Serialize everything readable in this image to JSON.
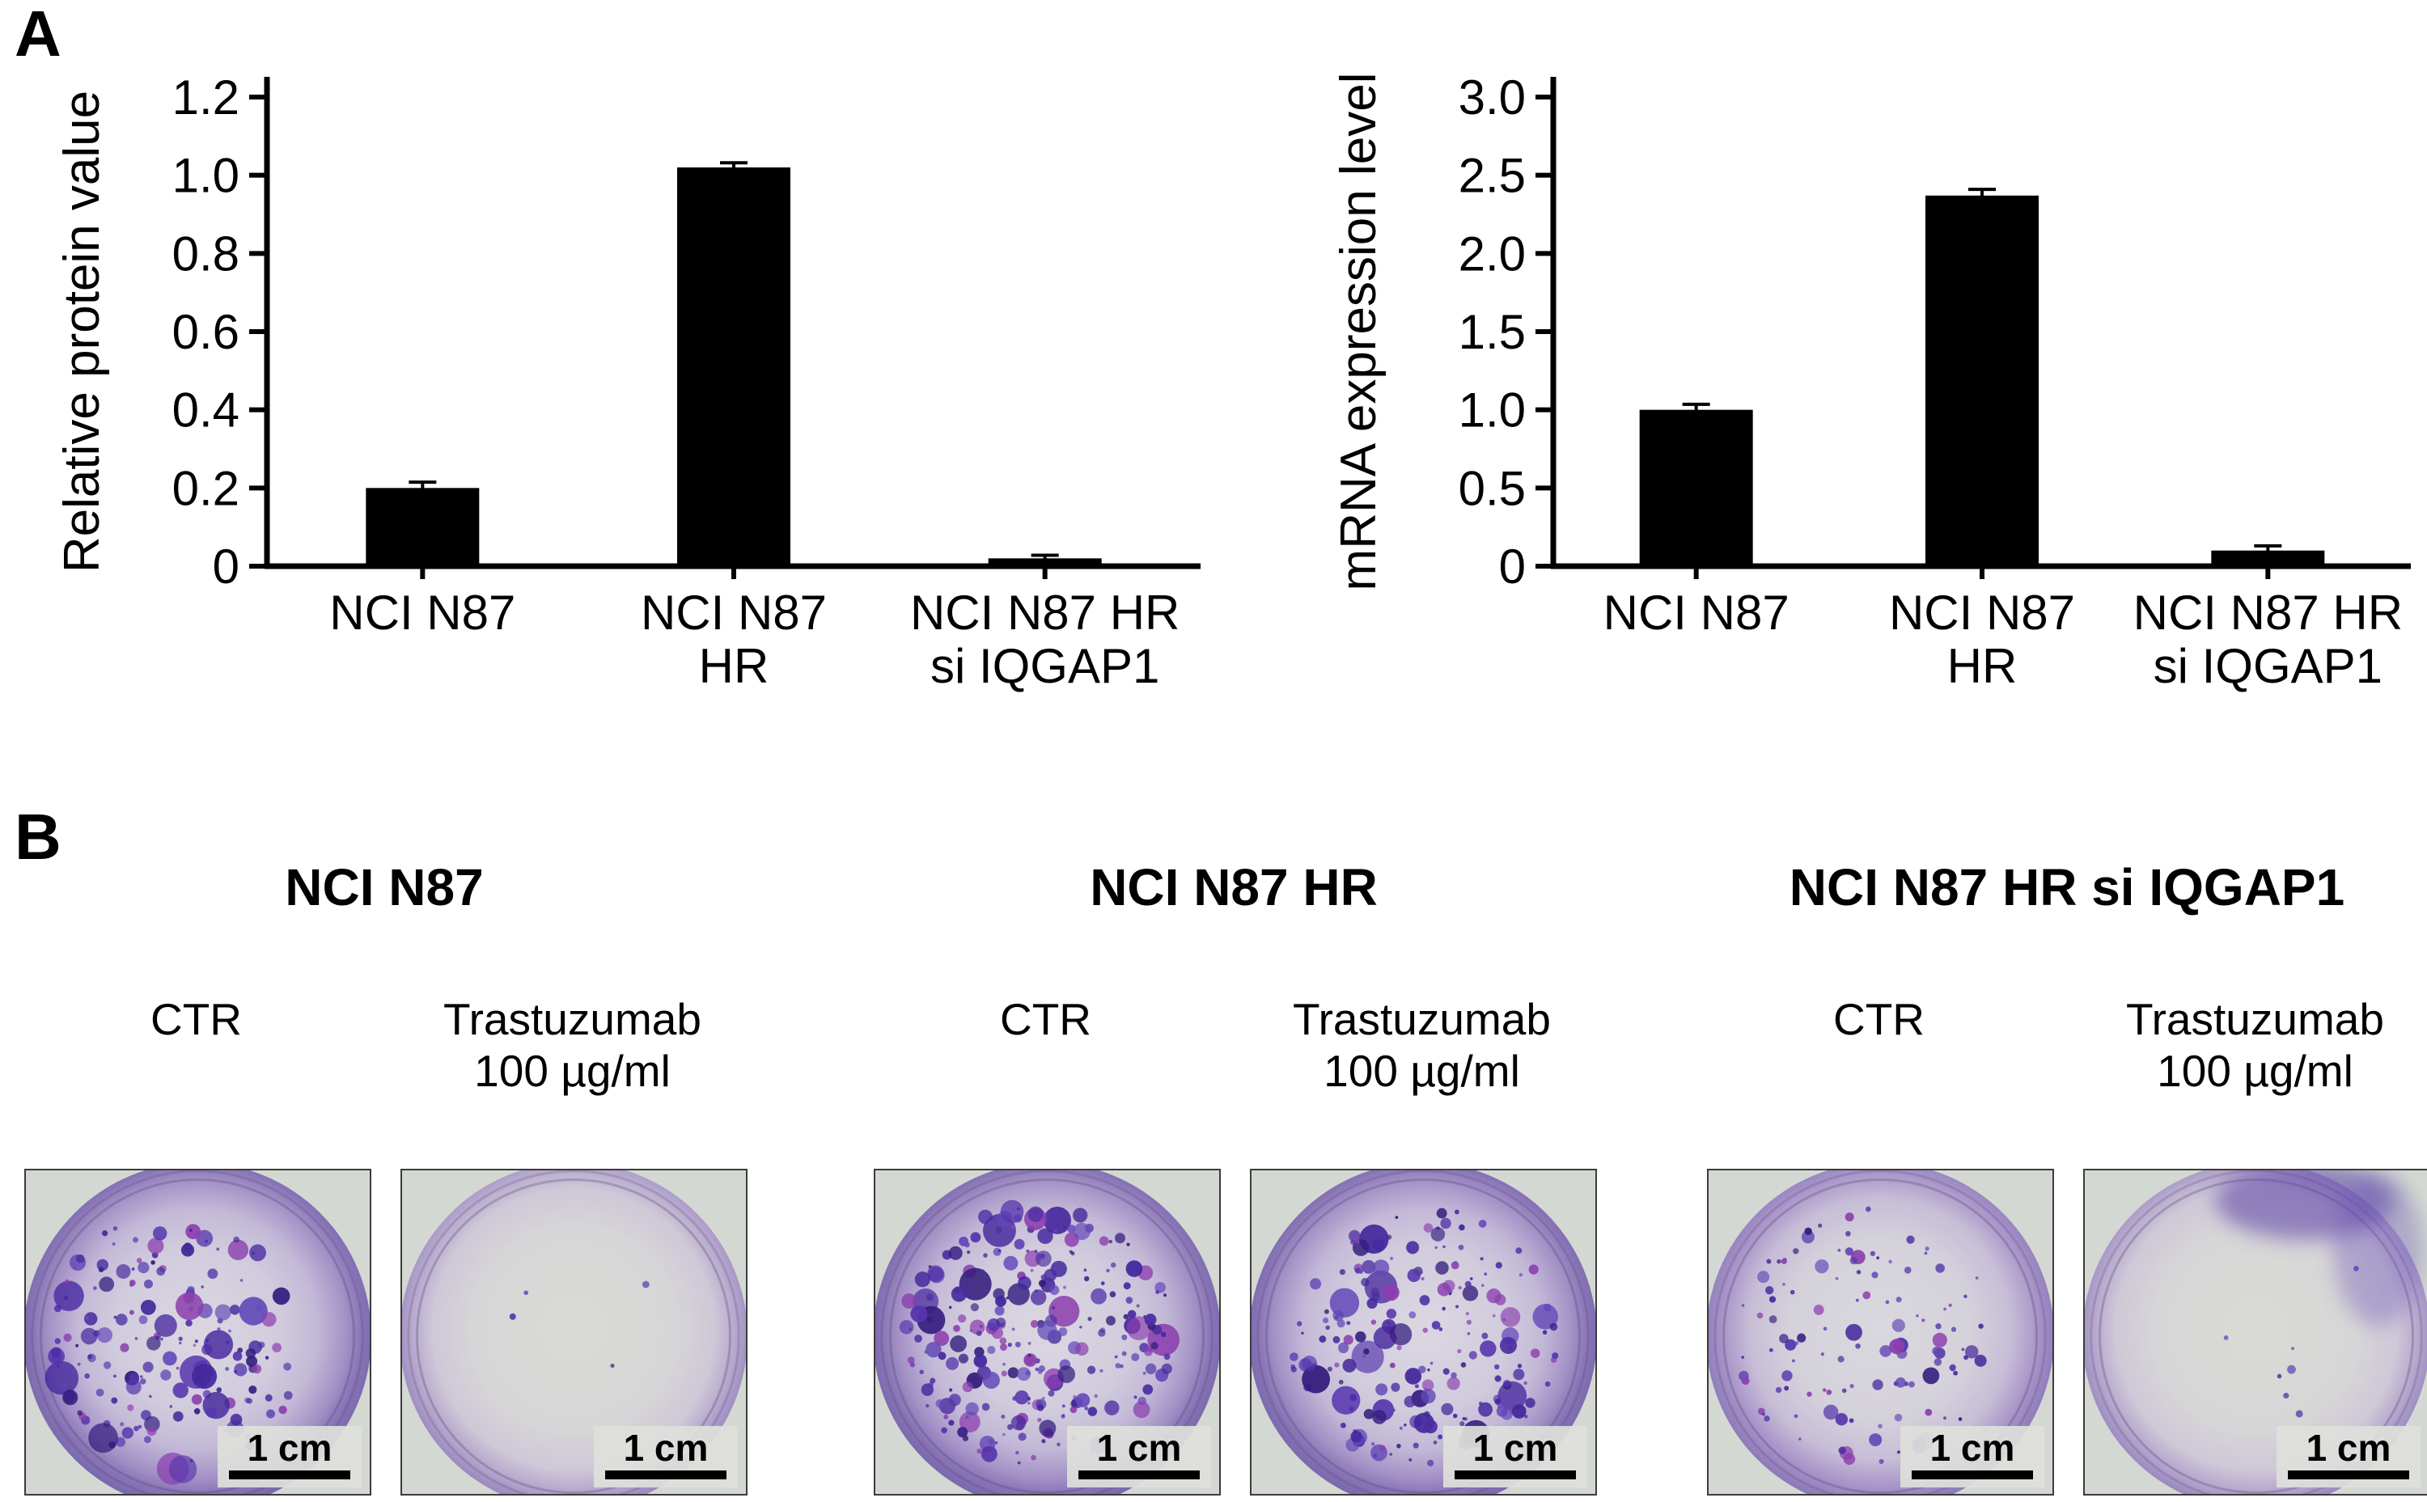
{
  "panelA": {
    "label": "A"
  },
  "chart_data": [
    {
      "type": "bar",
      "title": "",
      "ylabel": "Relative protein value",
      "xlabel": "",
      "categories": [
        "NCI N87",
        "NCI N87 HR",
        "NCI N87 HR si IQGAP1"
      ],
      "category_lines": [
        [
          "NCI N87"
        ],
        [
          "NCI N87",
          "HR"
        ],
        [
          "NCI N87 HR",
          "si IQGAP1"
        ]
      ],
      "values": [
        0.2,
        1.02,
        0.02
      ],
      "errors": [
        0.015,
        0.012,
        0.008
      ],
      "ytick_labels": [
        "0",
        "0.2",
        "0.4",
        "0.6",
        "0.8",
        "1.0",
        "1.2"
      ],
      "ylim": [
        0,
        1.2
      ],
      "bar_color": "#000000",
      "grid": false,
      "legend": "none"
    },
    {
      "type": "bar",
      "title": "",
      "ylabel": "mRNA expression level",
      "xlabel": "",
      "categories": [
        "NCI N87",
        "NCI N87 HR",
        "NCI N87 HR si IQGAP1"
      ],
      "category_lines": [
        [
          "NCI N87"
        ],
        [
          "NCI N87",
          "HR"
        ],
        [
          "NCI N87 HR",
          "si IQGAP1"
        ]
      ],
      "values": [
        1.0,
        2.37,
        0.1
      ],
      "errors": [
        0.035,
        0.04,
        0.03
      ],
      "ytick_labels": [
        "0",
        "0.5",
        "1.0",
        "1.5",
        "2.0",
        "2.5",
        "3.0"
      ],
      "ylim": [
        0,
        3.0
      ],
      "bar_color": "#000000",
      "grid": false,
      "legend": "none"
    }
  ],
  "panelB": {
    "label": "B",
    "groups": [
      {
        "title": "NCI N87",
        "wells": [
          {
            "condition": "CTR",
            "condition_lines": [
              "CTR"
            ],
            "colonies": 175,
            "seed": 11,
            "tint": "strong",
            "bias_x": -0.18,
            "bias_y": 0.05,
            "smudge_top": false,
            "scale_label": "1 cm"
          },
          {
            "condition": "Trastuzumab 100 µg/ml",
            "condition_lines": [
              "Trastuzumab",
              "100 µg/ml"
            ],
            "colonies": 4,
            "seed": 22,
            "tint": "clear",
            "bias_x": 0,
            "bias_y": 0,
            "smudge_top": false,
            "scale_label": "1 cm"
          }
        ]
      },
      {
        "title": "NCI N87 HR",
        "wells": [
          {
            "condition": "CTR",
            "condition_lines": [
              "CTR"
            ],
            "colonies": 265,
            "seed": 33,
            "tint": "strong",
            "bias_x": -0.06,
            "bias_y": 0,
            "smudge_top": false,
            "scale_label": "1 cm"
          },
          {
            "condition": "Trastuzumab 100 µg/ml",
            "condition_lines": [
              "Trastuzumab",
              "100 µg/ml"
            ],
            "colonies": 205,
            "seed": 44,
            "tint": "strong",
            "bias_x": 0,
            "bias_y": 0,
            "smudge_top": false,
            "scale_label": "1 cm"
          }
        ]
      },
      {
        "title": "NCI N87 HR si IQGAP1",
        "wells": [
          {
            "condition": "CTR",
            "condition_lines": [
              "CTR"
            ],
            "colonies": 115,
            "seed": 55,
            "tint": "medium",
            "bias_x": -0.1,
            "bias_y": 0,
            "smudge_top": false,
            "scale_label": "1 cm"
          },
          {
            "condition": "Trastuzumab 100 µg/ml",
            "condition_lines": [
              "Trastuzumab",
              "100 µg/ml"
            ],
            "colonies": 7,
            "seed": 66,
            "tint": "clear",
            "bias_x": 0.1,
            "bias_y": 0.2,
            "smudge_top": true,
            "scale_label": "1 cm"
          }
        ]
      }
    ],
    "colors": {
      "colony_palette": [
        "#43279c",
        "#5636ae",
        "#331e7e",
        "#6248b8",
        "#4b2da1",
        "#8b3fae"
      ],
      "well_rim": "#7b67ac",
      "backdrop": "#d3d9d2"
    }
  }
}
